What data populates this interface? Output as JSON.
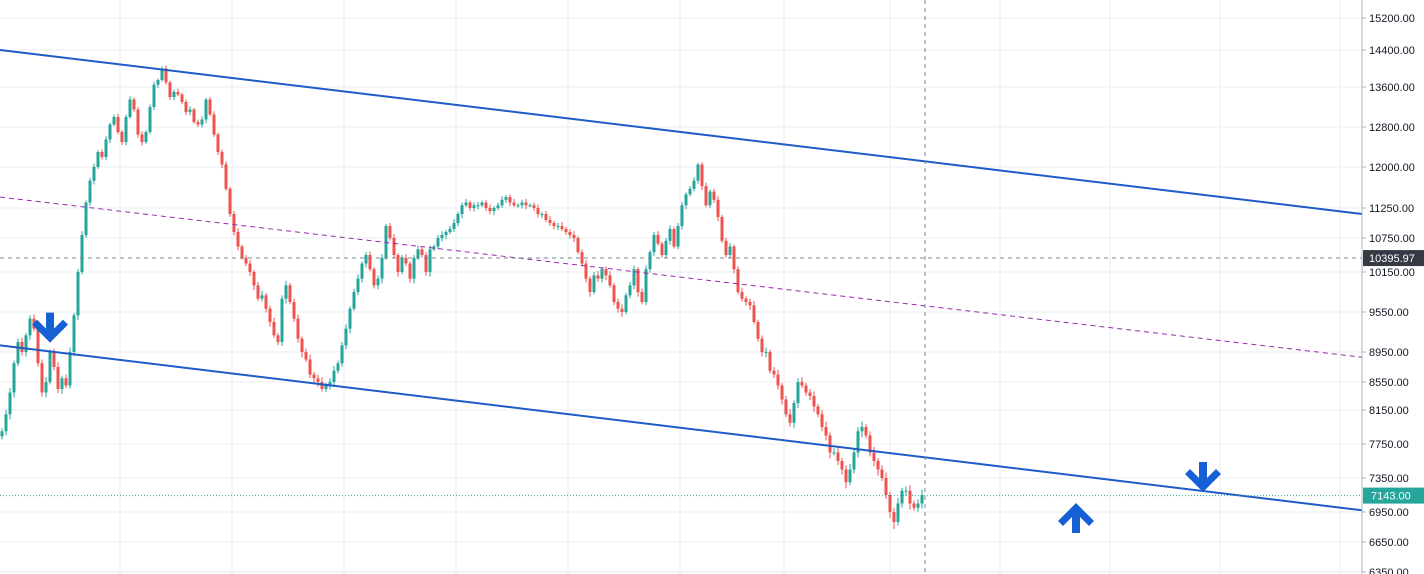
{
  "chart_data": {
    "type": "candlestick",
    "y_axis": {
      "side": "right",
      "ticks": [
        15200,
        14400,
        13600,
        12800,
        12000,
        11250,
        10750,
        10150,
        9550,
        8950,
        8550,
        8150,
        7750,
        7350,
        6950,
        6650,
        6350
      ],
      "tick_labels": [
        "15200.00",
        "14400.00",
        "13600.00",
        "12800.00",
        "12000.00",
        "11250.00",
        "10750.00",
        "10150.00",
        "9550.00",
        "8950.00",
        "8550.00",
        "8150.00",
        "7750.00",
        "7350.00",
        "6950.00",
        "6650.00",
        "6350.00"
      ]
    },
    "grid": true,
    "crosshair": {
      "value": 10395.97,
      "label": "10395.97"
    },
    "last_price": {
      "value": 7143.0,
      "label": "7143.00",
      "color": "#26a69a"
    },
    "colors": {
      "up": "#26a69a",
      "down": "#ef5350",
      "channel": "#1e5bc6",
      "midline": "#9c27b0",
      "arrow": "#1560d4"
    },
    "channel": {
      "upper": [
        [
          0,
          14400
        ],
        [
          1362,
          11150
        ]
      ],
      "lower": [
        [
          0,
          9050
        ],
        [
          1362,
          6970
        ]
      ],
      "mid": [
        [
          0,
          11450
        ],
        [
          1362,
          8880
        ]
      ]
    },
    "arrows": [
      {
        "direction": "down",
        "bar": 50,
        "price": 9300
      },
      {
        "direction": "up",
        "bar": 1076,
        "price": 6900
      },
      {
        "direction": "down",
        "bar": 1203,
        "price": 7350
      }
    ],
    "series": [
      {
        "bar_spacing": 4,
        "closes": [
          7900,
          8100,
          8400,
          8800,
          9100,
          8950,
          9200,
          9450,
          9300,
          8800,
          8400,
          8550,
          8950,
          8750,
          8450,
          8600,
          8500,
          8950,
          9500,
          10150,
          10800,
          11350,
          11750,
          12000,
          12300,
          12200,
          12550,
          12850,
          13000,
          12700,
          12500,
          13000,
          13350,
          13150,
          12650,
          12500,
          12700,
          13200,
          13650,
          13750,
          14000,
          13700,
          13400,
          13500,
          13450,
          13300,
          13100,
          13150,
          12900,
          12850,
          12950,
          13350,
          13050,
          12650,
          12300,
          12050,
          11600,
          11150,
          10850,
          10600,
          10400,
          10300,
          10150,
          9950,
          9750,
          9800,
          9600,
          9400,
          9200,
          9100,
          9750,
          9950,
          9700,
          9450,
          9150,
          8950,
          8850,
          8650,
          8600,
          8550,
          8450,
          8500,
          8550,
          8700,
          8800,
          9050,
          9300,
          9600,
          9850,
          10050,
          10300,
          10450,
          10200,
          9950,
          10050,
          10400,
          10950,
          10750,
          10450,
          10150,
          10400,
          10300,
          10050,
          10400,
          10550,
          10450,
          10150,
          10550,
          10600,
          10750,
          10800,
          10850,
          10900,
          11000,
          11150,
          11300,
          11350,
          11250,
          11300,
          11300,
          11350,
          11250,
          11200,
          11250,
          11300,
          11400,
          11450,
          11350,
          11300,
          11300,
          11350,
          11300,
          11300,
          11250,
          11150,
          11150,
          11050,
          11000,
          10950,
          10950,
          10900,
          10850,
          10800,
          10750,
          10500,
          10300,
          10050,
          9850,
          10100,
          10050,
          10200,
          10100,
          9950,
          9700,
          9600,
          9550,
          9800,
          9950,
          10200,
          9850,
          9700,
          10200,
          10500,
          10800,
          10650,
          10450,
          10700,
          10900,
          10600,
          10950,
          11300,
          11500,
          11600,
          11750,
          12050,
          11650,
          11300,
          11550,
          11400,
          11100,
          10700,
          10450,
          10600,
          10200,
          9850,
          9750,
          9700,
          9650,
          9400,
          9150,
          8950,
          8950,
          8700,
          8650,
          8500,
          8300,
          8100,
          8000,
          8250,
          8550,
          8500,
          8400,
          8350,
          8200,
          8100,
          7950,
          7850,
          7650,
          7650,
          7550,
          7450,
          7300,
          7450,
          7650,
          7900,
          7950,
          7850,
          7650,
          7550,
          7450,
          7350,
          7150,
          6950,
          6850,
          7050,
          7200,
          7200,
          7050,
          7000,
          7050,
          7150
        ]
      }
    ]
  }
}
